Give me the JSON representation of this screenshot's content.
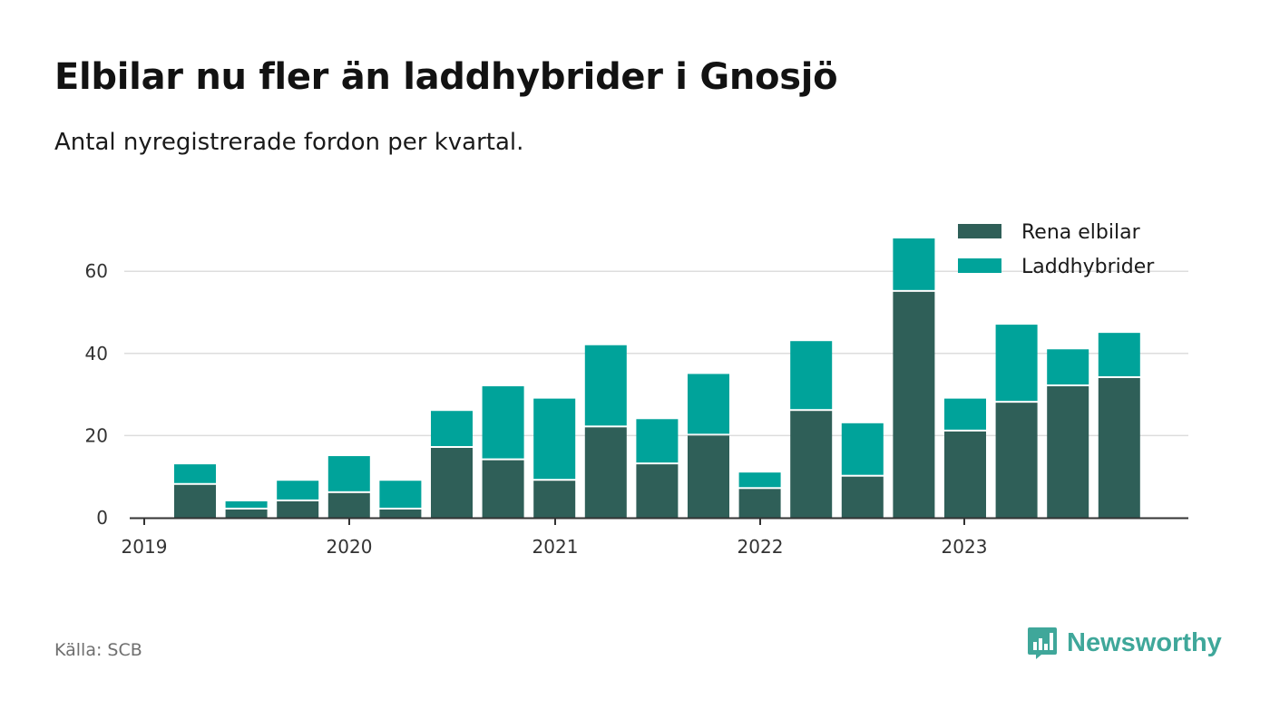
{
  "header": {
    "title": "Elbilar nu fler än laddhybrider i Gnosjö",
    "subtitle": "Antal nyregistrerade fordon per kvartal."
  },
  "footer": {
    "source": "Källa: SCB",
    "brand": "Newsworthy"
  },
  "colors": {
    "elbilar": "#2f5f58",
    "laddhybrider": "#00a39a",
    "grid": "#dddddd",
    "axis": "#333333",
    "brand": "#3fa79a"
  },
  "chart_data": {
    "type": "bar",
    "stacked": true,
    "categories": [
      "2019 Q2",
      "2019 Q3",
      "2019 Q4",
      "2020 Q1",
      "2020 Q2",
      "2020 Q3",
      "2020 Q4",
      "2021 Q1",
      "2021 Q2",
      "2021 Q3",
      "2021 Q4",
      "2022 Q1",
      "2022 Q2",
      "2022 Q3",
      "2022 Q4",
      "2023 Q1",
      "2023 Q2",
      "2023 Q3",
      "2023 Q4"
    ],
    "series": [
      {
        "name": "Rena elbilar",
        "values": [
          8,
          2,
          4,
          6,
          2,
          17,
          14,
          9,
          22,
          13,
          20,
          7,
          26,
          10,
          55,
          21,
          28,
          32,
          34
        ]
      },
      {
        "name": "Laddhybrider",
        "values": [
          5,
          2,
          5,
          9,
          7,
          9,
          18,
          20,
          20,
          11,
          15,
          4,
          17,
          13,
          13,
          8,
          19,
          9,
          11
        ]
      }
    ],
    "x_tick_labels": [
      "2019",
      "2020",
      "2021",
      "2022",
      "2023"
    ],
    "y_ticks": [
      0,
      20,
      40,
      60
    ],
    "ylim": [
      0,
      70
    ],
    "legend_position": "top-right",
    "grid": true
  }
}
